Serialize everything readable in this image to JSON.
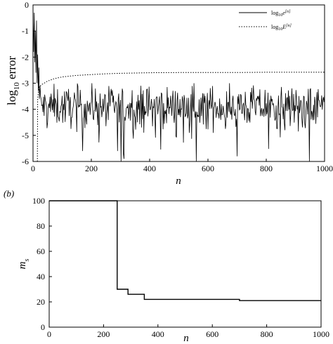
{
  "figure": {
    "panel_b_label": "(b)"
  },
  "chart_data": [
    {
      "type": "line",
      "title": "",
      "xlabel": "n",
      "ylabel_main": "log",
      "ylabel_sub": "10",
      "ylabel_rest": " error",
      "xlim": [
        0,
        1000
      ],
      "ylim": [
        -6,
        0
      ],
      "xticks": [
        0,
        200,
        400,
        600,
        800,
        1000
      ],
      "yticks": [
        -6,
        -5,
        -4,
        -3,
        -2,
        -1,
        0
      ],
      "grid": false,
      "legend_position": "top-right",
      "series": [
        {
          "name": "log10e[n]",
          "legend_prefix": "log",
          "legend_sub": "10",
          "legend_suffix": "e",
          "legend_sup": "[n]",
          "style": "solid",
          "head": [
            [
              0,
              -0.5
            ],
            [
              2,
              -1.8
            ],
            [
              4,
              -0.3
            ],
            [
              6,
              -2.2
            ],
            [
              8,
              -1.0
            ],
            [
              10,
              -2.6
            ],
            [
              12,
              -0.6
            ],
            [
              14,
              -3.0
            ],
            [
              16,
              -1.9
            ],
            [
              18,
              -3.3
            ],
            [
              20,
              -2.4
            ],
            [
              22,
              -3.6
            ],
            [
              24,
              -3.1
            ]
          ],
          "noise_mean": -3.9,
          "noise_spread": 0.55,
          "noise_min": -6,
          "noise_max": -3.0,
          "deep_dips": [
            [
              302,
              -6
            ],
            [
              312,
              -5.9
            ],
            [
              560,
              -6
            ],
            [
              948,
              -6
            ],
            [
              170,
              -5.6
            ],
            [
              290,
              -5.6
            ],
            [
              700,
              -5.8
            ]
          ]
        },
        {
          "name": "log10E[n]",
          "legend_prefix": "log",
          "legend_sub": "10",
          "legend_suffix": "E",
          "legend_sup": "[n]",
          "style": "dotted",
          "points": [
            [
              15,
              -6.0
            ],
            [
              16,
              -3.6
            ],
            [
              20,
              -3.15
            ],
            [
              30,
              -3.05
            ],
            [
              50,
              -2.92
            ],
            [
              75,
              -2.82
            ],
            [
              100,
              -2.76
            ],
            [
              150,
              -2.7
            ],
            [
              200,
              -2.67
            ],
            [
              250,
              -2.64
            ],
            [
              300,
              -2.62
            ],
            [
              350,
              -2.61
            ],
            [
              400,
              -2.6
            ],
            [
              500,
              -2.59
            ],
            [
              600,
              -2.59
            ],
            [
              700,
              -2.59
            ],
            [
              800,
              -2.58
            ],
            [
              900,
              -2.58
            ],
            [
              1000,
              -2.58
            ]
          ]
        }
      ]
    },
    {
      "type": "line",
      "title": "",
      "panel": "(b)",
      "xlabel": "n",
      "ylabel_main": "m",
      "ylabel_sub": "s",
      "xlim": [
        0,
        1000
      ],
      "ylim": [
        0,
        100
      ],
      "xticks": [
        0,
        200,
        400,
        600,
        800,
        1000
      ],
      "yticks": [
        0,
        20,
        40,
        60,
        80,
        100
      ],
      "grid": false,
      "series": [
        {
          "style": "step",
          "points": [
            [
              0,
              100
            ],
            [
              250,
              100
            ],
            [
              250,
              30
            ],
            [
              290,
              30
            ],
            [
              290,
              26
            ],
            [
              350,
              26
            ],
            [
              350,
              22
            ],
            [
              700,
              22
            ],
            [
              700,
              21
            ],
            [
              1000,
              21
            ]
          ]
        }
      ]
    }
  ]
}
